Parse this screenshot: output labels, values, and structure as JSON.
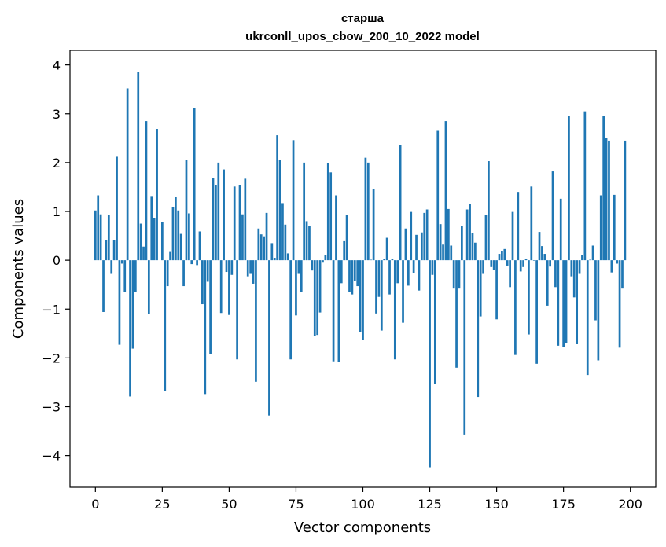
{
  "chart_data": {
    "type": "bar",
    "title_line1": "старша",
    "title_line2": "ukrconll_upos_cbow_200_10_2022 model",
    "xlabel": "Vector components",
    "ylabel": "Components values",
    "xlim": [
      -9.5,
      209.5
    ],
    "ylim": [
      -4.65,
      4.3
    ],
    "xticks": [
      0,
      25,
      50,
      75,
      100,
      125,
      150,
      175,
      200
    ],
    "yticks": [
      -4,
      -3,
      -2,
      -1,
      0,
      1,
      2,
      3,
      4
    ],
    "ytick_labels": [
      "−4",
      "−3",
      "−2",
      "−1",
      "0",
      "1",
      "2",
      "3",
      "4"
    ],
    "grid": false,
    "bar_color": "#1f77b4",
    "values": [
      1.02,
      1.33,
      0.94,
      -1.06,
      0.42,
      0.92,
      -0.28,
      0.41,
      2.12,
      -1.73,
      -0.07,
      -0.65,
      3.52,
      -2.79,
      -1.81,
      -0.65,
      3.86,
      0.75,
      0.28,
      2.85,
      -1.1,
      1.3,
      0.87,
      2.69,
      0.0,
      0.78,
      -2.67,
      -0.53,
      0.17,
      1.09,
      1.29,
      1.02,
      0.54,
      -0.53,
      2.05,
      0.96,
      -0.08,
      3.12,
      -0.1,
      0.59,
      -0.9,
      -2.74,
      -0.44,
      -1.92,
      1.68,
      1.54,
      2.0,
      -1.08,
      1.86,
      -0.24,
      -1.12,
      -0.3,
      1.51,
      -2.03,
      1.54,
      0.94,
      1.67,
      -0.33,
      -0.28,
      -0.48,
      -2.49,
      0.65,
      0.53,
      0.49,
      0.97,
      -3.18,
      0.35,
      0.05,
      2.56,
      2.05,
      1.17,
      0.73,
      0.14,
      -2.03,
      2.46,
      -1.13,
      -0.28,
      -0.65,
      2.0,
      0.8,
      0.71,
      -0.21,
      -1.55,
      -1.53,
      -1.07,
      -0.05,
      0.11,
      1.99,
      1.8,
      -2.07,
      1.33,
      -2.08,
      -0.47,
      0.39,
      0.93,
      -0.65,
      -0.7,
      -0.43,
      -0.53,
      -1.47,
      -1.63,
      2.1,
      2.0,
      0.01,
      1.46,
      -1.09,
      -0.75,
      -1.44,
      0.02,
      0.46,
      -0.7,
      0.02,
      -2.03,
      -0.47,
      2.36,
      -1.28,
      0.65,
      -0.52,
      0.99,
      -0.27,
      0.52,
      -0.62,
      0.57,
      0.97,
      1.04,
      -4.24,
      -0.3,
      -2.53,
      2.65,
      0.74,
      0.32,
      2.85,
      1.05,
      0.3,
      -0.58,
      -2.2,
      -0.58,
      0.7,
      -3.57,
      1.04,
      1.16,
      0.56,
      0.36,
      -2.8,
      -1.15,
      -0.28,
      0.92,
      2.03,
      -0.14,
      -0.2,
      -1.21,
      0.13,
      0.18,
      0.23,
      -0.11,
      -0.55,
      0.99,
      -1.94,
      1.4,
      -0.23,
      -0.14,
      0.02,
      -1.52,
      1.51,
      -0.01,
      -2.12,
      0.58,
      0.29,
      0.13,
      -0.93,
      -0.13,
      1.82,
      -0.55,
      -1.75,
      1.26,
      -1.77,
      -1.7,
      2.95,
      -0.33,
      -0.76,
      -1.72,
      -0.28,
      0.11,
      3.05,
      -2.35,
      0.01,
      0.3,
      -1.23,
      -2.05,
      1.33,
      2.95,
      2.51,
      2.45,
      -0.25,
      1.34,
      -0.07,
      -1.79,
      -0.58,
      2.45
    ]
  }
}
